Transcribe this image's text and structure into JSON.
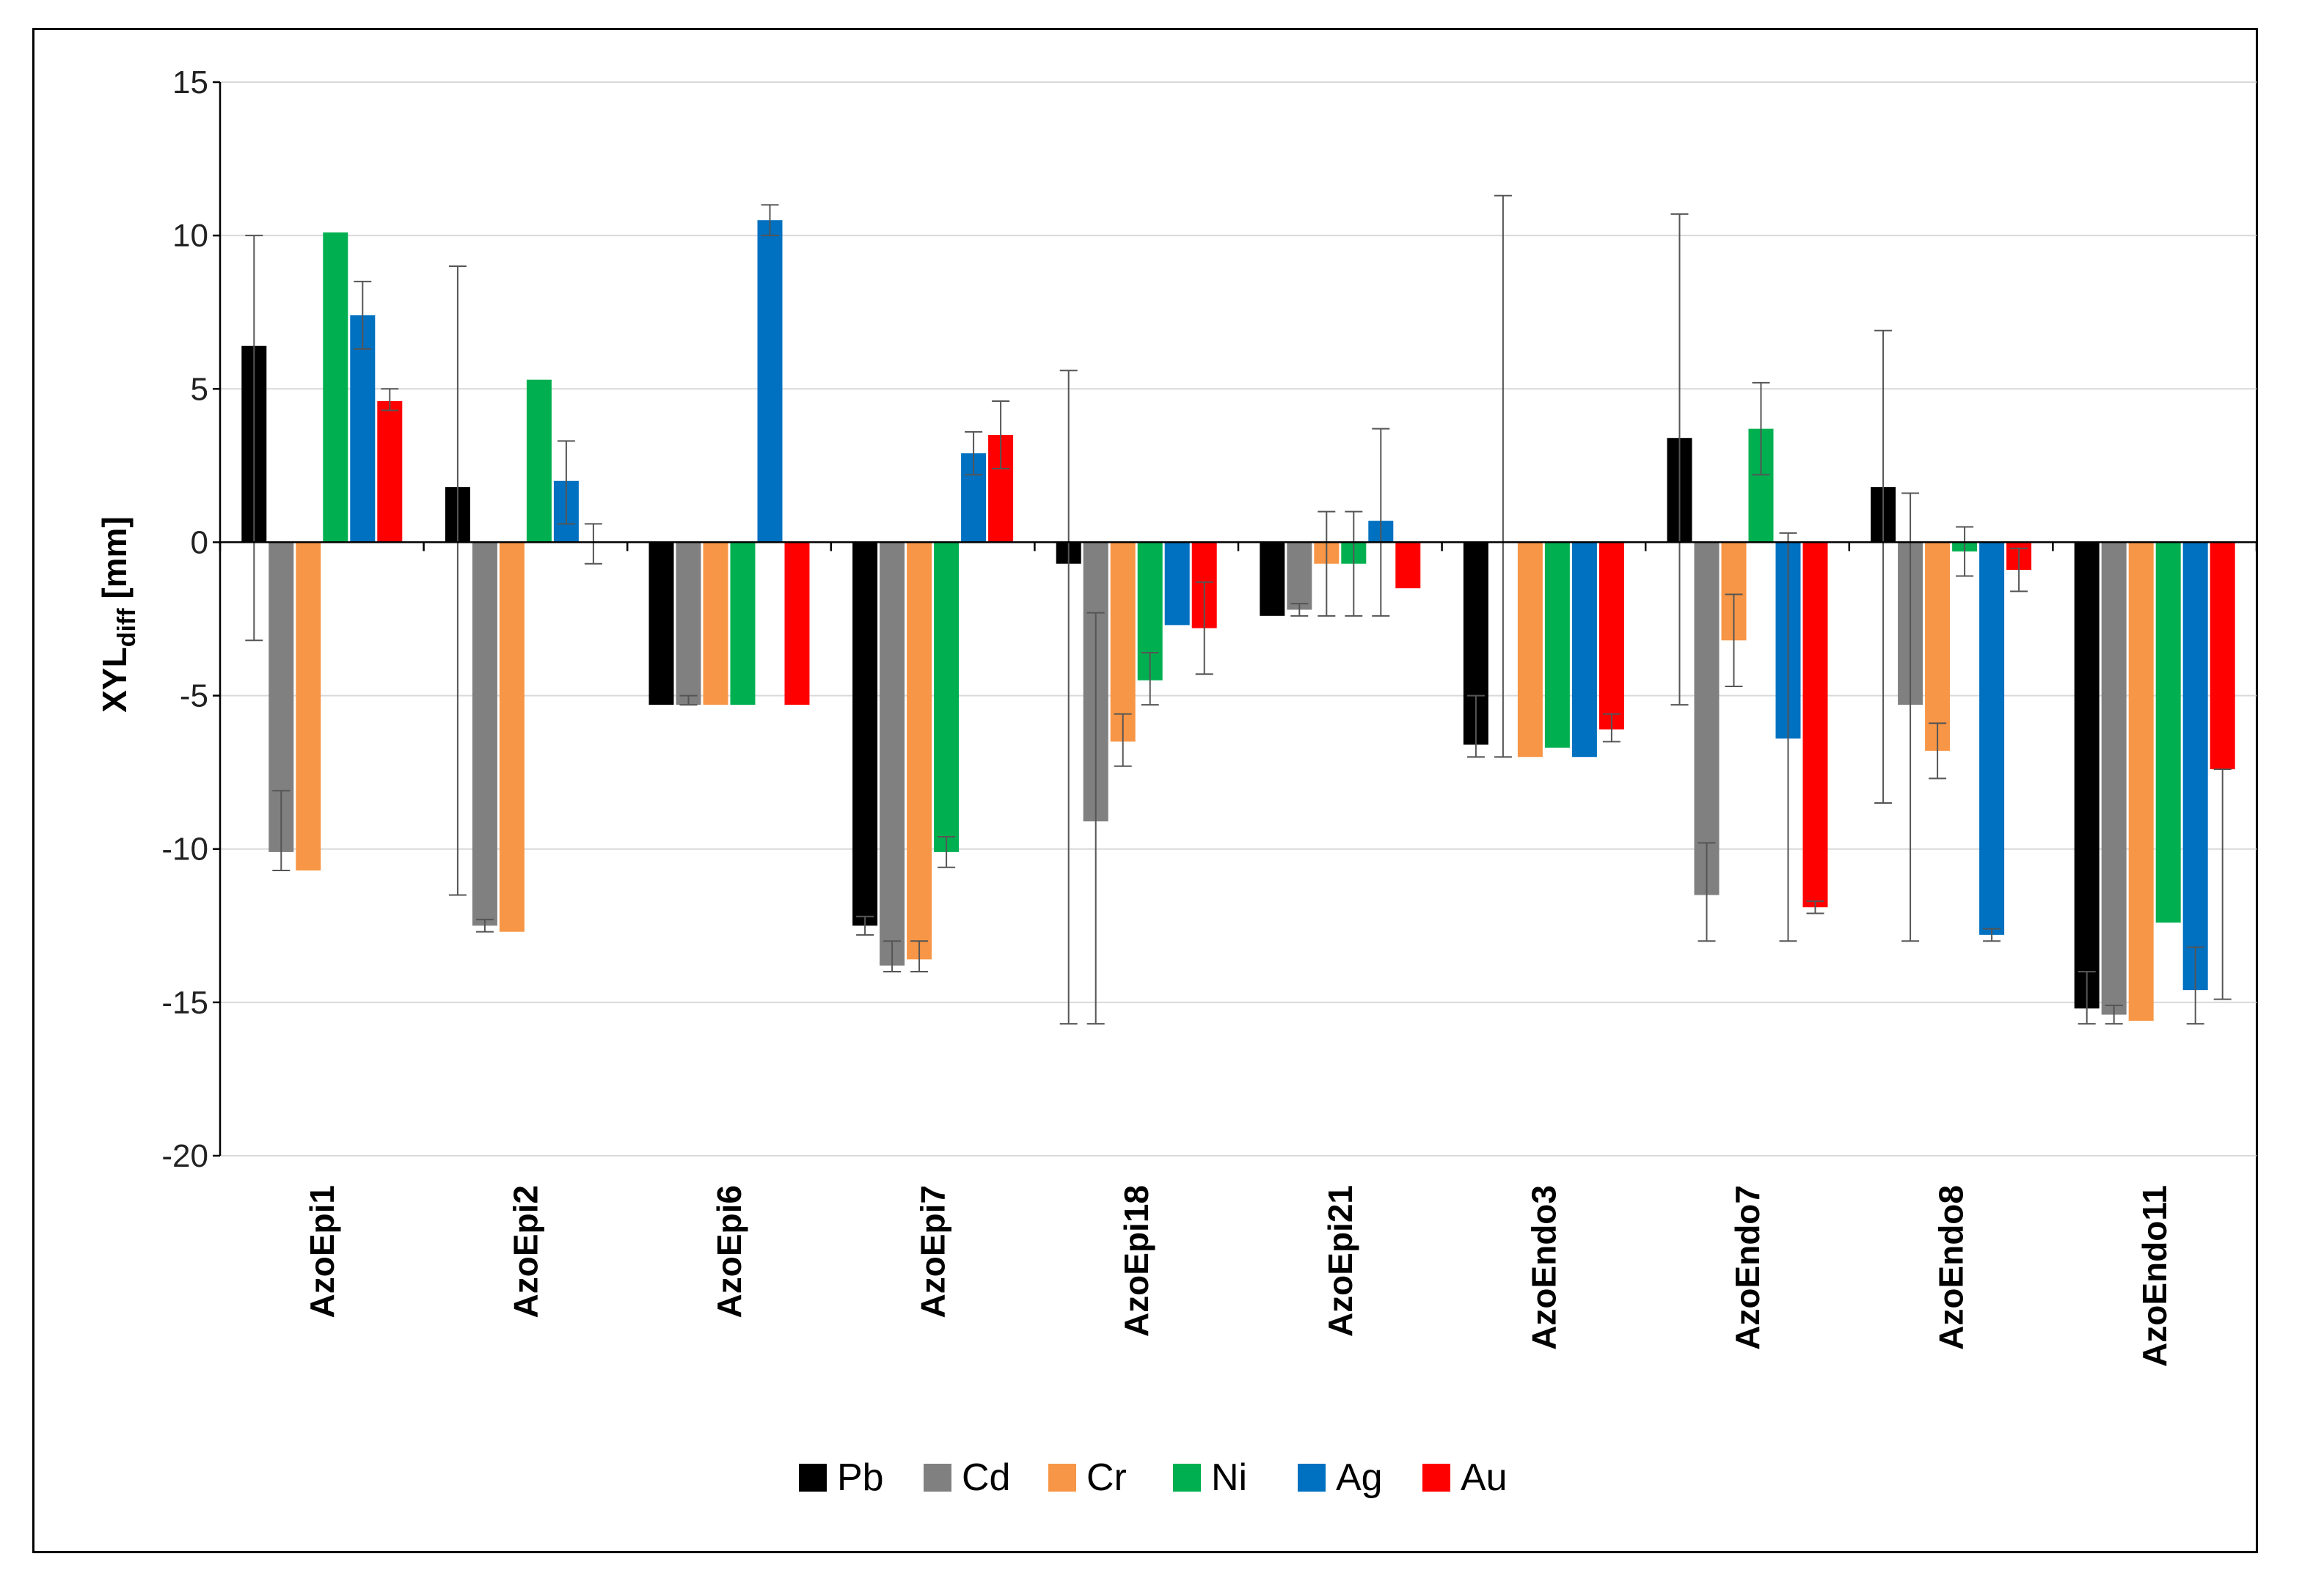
{
  "chart_data": {
    "type": "bar",
    "title": "",
    "xlabel": "",
    "ylabel": {
      "main": "XYL",
      "sub": "diff",
      "unit": " [mm]"
    },
    "ylim": [
      -20,
      15
    ],
    "yticks": [
      15,
      10,
      5,
      0,
      -5,
      -10,
      -15,
      -20
    ],
    "grid": true,
    "legend_position": "bottom",
    "categories": [
      "AzoEpi1",
      "AzoEpi2",
      "AzoEpi6",
      "AzoEpi7",
      "AzoEpi18",
      "AzoEpi21",
      "AzoEndo3",
      "AzoEndo7",
      "AzoEndo8",
      "AzoEndo11"
    ],
    "series": [
      {
        "name": "Pb",
        "color": "#000000",
        "values": [
          6.4,
          1.8,
          -5.3,
          -12.5,
          -0.7,
          -2.4,
          -6.6,
          3.4,
          1.8,
          -15.2
        ],
        "err_low": [
          -3.2,
          -11.5,
          null,
          -12.8,
          -15.7,
          null,
          -7.0,
          -5.3,
          -8.5,
          -15.7
        ],
        "err_high": [
          10.0,
          9.0,
          null,
          -12.2,
          5.6,
          null,
          -5.0,
          10.7,
          6.9,
          -14.0
        ]
      },
      {
        "name": "Cd",
        "color": "#808080",
        "values": [
          -10.1,
          -12.5,
          -5.3,
          -13.8,
          -9.1,
          -2.2,
          0.0,
          -11.5,
          -5.3,
          -15.4
        ],
        "err_low": [
          -10.7,
          -12.7,
          -5.3,
          -14.0,
          -15.7,
          -2.4,
          -7.0,
          -13.0,
          -13.0,
          -15.7
        ],
        "err_high": [
          -8.1,
          -12.3,
          -5.0,
          -13.0,
          -2.3,
          -2.0,
          11.3,
          -9.8,
          1.6,
          -15.1
        ]
      },
      {
        "name": "Cr",
        "color": "#F79646",
        "values": [
          -10.7,
          -12.7,
          -5.3,
          -13.6,
          -6.5,
          -0.7,
          -7.0,
          -3.2,
          -6.8,
          -15.6
        ],
        "err_low": [
          null,
          null,
          null,
          -14.0,
          -7.3,
          -2.4,
          null,
          -4.7,
          -7.7,
          null
        ],
        "err_high": [
          null,
          null,
          null,
          -13.0,
          -5.6,
          1.0,
          null,
          -1.7,
          -5.9,
          null
        ]
      },
      {
        "name": "Ni",
        "color": "#00B050",
        "values": [
          10.1,
          5.3,
          -5.3,
          -10.1,
          -4.5,
          -0.7,
          -6.7,
          3.7,
          -0.3,
          -12.4
        ],
        "err_low": [
          null,
          null,
          null,
          -10.6,
          -5.3,
          -2.4,
          null,
          2.2,
          -1.1,
          null
        ],
        "err_high": [
          null,
          null,
          null,
          -9.6,
          -3.6,
          1.0,
          null,
          5.2,
          0.5,
          null
        ]
      },
      {
        "name": "Ag",
        "color": "#0070C0",
        "values": [
          7.4,
          2.0,
          10.5,
          2.9,
          -2.7,
          0.7,
          -7.0,
          -6.4,
          -12.8,
          -14.6
        ],
        "err_low": [
          6.3,
          0.6,
          10.0,
          2.2,
          null,
          -2.4,
          null,
          -13.0,
          -13.0,
          -15.7
        ],
        "err_high": [
          8.5,
          3.3,
          11.0,
          3.6,
          null,
          3.7,
          null,
          0.3,
          -12.6,
          -13.2
        ]
      },
      {
        "name": "Au",
        "color": "#FF0000",
        "values": [
          4.6,
          0.0,
          -5.3,
          3.5,
          -2.8,
          -1.5,
          -6.1,
          -11.9,
          -0.9,
          -7.4
        ],
        "err_low": [
          4.3,
          -0.7,
          null,
          2.4,
          -4.3,
          null,
          -6.5,
          -12.1,
          -1.6,
          -14.9
        ],
        "err_high": [
          5.0,
          0.6,
          null,
          4.6,
          -1.3,
          null,
          -5.6,
          -11.7,
          -0.2,
          -7.4
        ]
      }
    ]
  }
}
